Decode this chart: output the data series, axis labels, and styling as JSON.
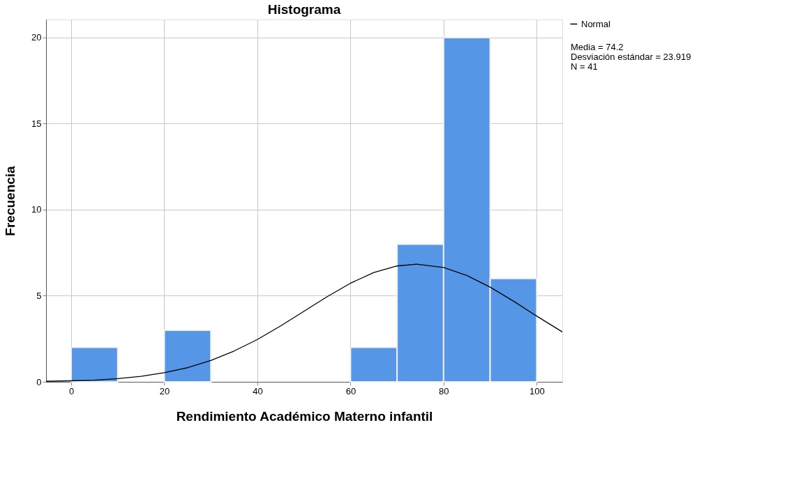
{
  "chart_data": {
    "type": "histogram",
    "title": "Histograma",
    "xlabel": "Rendimiento Académico Materno infantil",
    "ylabel": "Frecuencia",
    "bins": [
      0,
      10,
      20,
      30,
      40,
      50,
      60,
      70,
      80,
      90,
      100
    ],
    "values": [
      2,
      0,
      3,
      0,
      0,
      0,
      2,
      8,
      20,
      6
    ],
    "color": "#5596e6",
    "series": [
      {
        "name": "Normal",
        "type": "line",
        "color": "#000000",
        "x": [
          -5.4,
          0,
          5,
          10,
          15,
          20,
          25,
          30,
          35,
          40,
          45,
          50,
          55,
          60,
          65,
          70,
          74.2,
          80,
          85,
          90,
          95,
          100,
          105.5
        ],
        "values": [
          0.03,
          0.06,
          0.1,
          0.19,
          0.32,
          0.53,
          0.82,
          1.24,
          1.79,
          2.46,
          3.25,
          4.1,
          4.95,
          5.73,
          6.35,
          6.73,
          6.84,
          6.64,
          6.18,
          5.5,
          4.69,
          3.82,
          2.9
        ]
      }
    ],
    "xlim": [
      -5.4,
      105.5
    ],
    "ylim": [
      0,
      21.05
    ],
    "xticks": [
      0,
      20,
      40,
      60,
      80,
      100
    ],
    "yticks": [
      0,
      5,
      10,
      15,
      20
    ],
    "grid": true,
    "legend": "top right",
    "annotations": [
      "Media = 74.2",
      "Desviación estándar = 23.919",
      "N = 41"
    ]
  }
}
